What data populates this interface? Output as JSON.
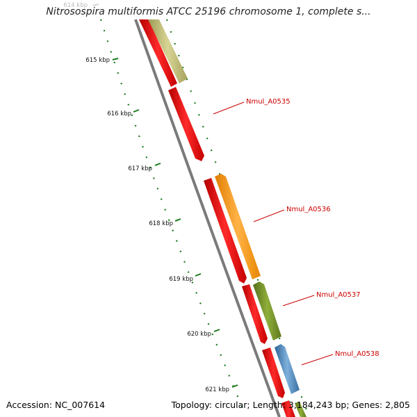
{
  "header": {
    "title": "Nitrosospira multiformis ATCC 25196 chromosome 1, complete s..."
  },
  "footer": {
    "accession": "Accession: NC_007614",
    "summary": "Topology: circular; Length: 3,184,243 bp; Genes: 2,805"
  },
  "colors": {
    "backbone": "#7a7a7a",
    "tick_dots": "#1a7a1a",
    "reverse_genes": "#ee0000",
    "forward_khaki": "#bdb76b",
    "forward_orange": "#ff9900",
    "forward_olive": "#6b8e23",
    "forward_blue": "#4682b4",
    "label_text": "#cc0000"
  },
  "ticks": [
    {
      "label": "614 kbp",
      "faded": true
    },
    {
      "label": "615 kbp"
    },
    {
      "label": "616 kbp"
    },
    {
      "label": "617 kbp"
    },
    {
      "label": "618 kbp"
    },
    {
      "label": "619 kbp"
    },
    {
      "label": "620 kbp"
    },
    {
      "label": "621 kbp"
    }
  ],
  "gene_labels": [
    {
      "name": "Nmul_A0535"
    },
    {
      "name": "Nmul_A0536"
    },
    {
      "name": "Nmul_A0537"
    },
    {
      "name": "Nmul_A0538"
    }
  ]
}
